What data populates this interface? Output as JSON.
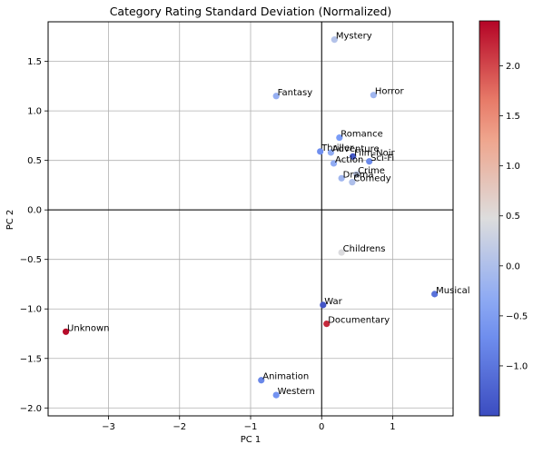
{
  "chart_data": {
    "type": "scatter",
    "title": "Category Rating Standard Deviation (Normalized)",
    "xlabel": "PC 1",
    "ylabel": "PC 2",
    "xlim": [
      -3.85,
      1.85
    ],
    "ylim": [
      -2.08,
      1.9
    ],
    "xticks": [
      -3,
      -2,
      -1,
      0,
      1
    ],
    "yticks": [
      -2.0,
      -1.5,
      -1.0,
      -0.5,
      0.0,
      0.5,
      1.0,
      1.5
    ],
    "grid": true,
    "reference_lines": {
      "x": 0,
      "y": 0
    },
    "colormap": "coolwarm",
    "colorbar": {
      "min": -1.5,
      "max": 2.45,
      "ticks": [
        -1.0,
        -0.5,
        0.0,
        0.5,
        1.0,
        1.5,
        2.0
      ]
    },
    "points": [
      {
        "label": "Mystery",
        "x": 0.18,
        "y": 1.72,
        "c": 0.05
      },
      {
        "label": "Fantasy",
        "x": -0.64,
        "y": 1.15,
        "c": -0.25
      },
      {
        "label": "Horror",
        "x": 0.73,
        "y": 1.16,
        "c": -0.15
      },
      {
        "label": "Romance",
        "x": 0.25,
        "y": 0.73,
        "c": -0.55
      },
      {
        "label": "Thriller",
        "x": -0.02,
        "y": 0.59,
        "c": -0.7
      },
      {
        "label": "Adventure",
        "x": 0.13,
        "y": 0.58,
        "c": -0.3
      },
      {
        "label": "Film-Noir",
        "x": 0.44,
        "y": 0.54,
        "c": -1.35
      },
      {
        "label": "Sci-Fi",
        "x": 0.67,
        "y": 0.49,
        "c": -0.75
      },
      {
        "label": "Action",
        "x": 0.17,
        "y": 0.47,
        "c": -0.3
      },
      {
        "label": "Crime",
        "x": 0.49,
        "y": 0.36,
        "c": 0.15
      },
      {
        "label": "Drama",
        "x": 0.28,
        "y": 0.32,
        "c": -0.15
      },
      {
        "label": "Comedy",
        "x": 0.43,
        "y": 0.28,
        "c": 0.0
      },
      {
        "label": "Childrens",
        "x": 0.28,
        "y": -0.43,
        "c": 0.45
      },
      {
        "label": "Musical",
        "x": 1.59,
        "y": -0.85,
        "c": -1.05
      },
      {
        "label": "War",
        "x": 0.02,
        "y": -0.96,
        "c": -1.4
      },
      {
        "label": "Documentary",
        "x": 0.07,
        "y": -1.15,
        "c": 2.2
      },
      {
        "label": "Unknown",
        "x": -3.6,
        "y": -1.23,
        "c": 2.4
      },
      {
        "label": "Animation",
        "x": -0.85,
        "y": -1.72,
        "c": -0.8
      },
      {
        "label": "Western",
        "x": -0.64,
        "y": -1.87,
        "c": -0.65
      }
    ]
  }
}
